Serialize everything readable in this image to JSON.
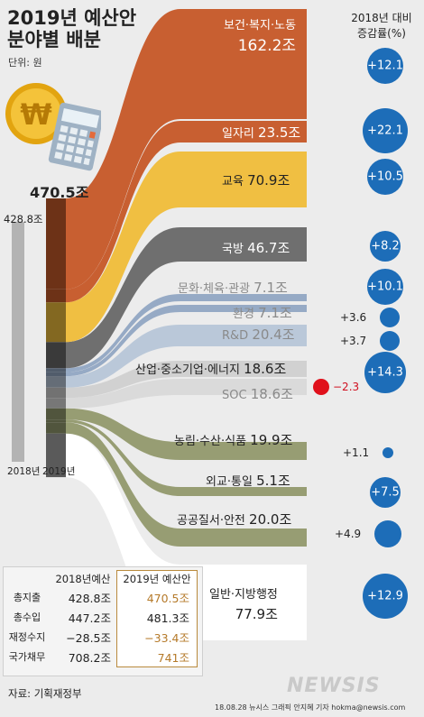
{
  "title_line1": "2019년 예산안",
  "title_line2": "분야별 배분",
  "unit": "단위: 원",
  "increase_title": "2018년 대비\n증감률(%)",
  "total_2019": "470.5조",
  "total_2018": "428.8조",
  "year_2018": "2018년",
  "year_2019": "2019년",
  "chart_data": {
    "type": "sankey",
    "unit": "조 원",
    "totals": {
      "2018": 428.8,
      "2019": 470.5
    },
    "categories": [
      {
        "name": "보건·복지·노동",
        "value_label": "162.2조",
        "value": 162.2,
        "change_pct": 12.1,
        "change_label": "+12.1",
        "color": "#c65a2a"
      },
      {
        "name": "일자리",
        "value_label": "23.5조",
        "value": 23.5,
        "change_pct": 22.1,
        "change_label": "+22.1",
        "color": "#c65a2a"
      },
      {
        "name": "교육",
        "value_label": "70.9조",
        "value": 70.9,
        "change_pct": 10.5,
        "change_label": "+10.5",
        "color": "#efbd3c"
      },
      {
        "name": "국방",
        "value_label": "46.7조",
        "value": 46.7,
        "change_pct": 8.2,
        "change_label": "+8.2",
        "color": "#6a6a6a"
      },
      {
        "name": "문화·체육·관광",
        "value_label": "7.1조",
        "value": 7.1,
        "change_pct": 10.1,
        "change_label": "+10.1",
        "color": "#93a7c3"
      },
      {
        "name": "환경",
        "value_label": "7.1조",
        "value": 7.1,
        "change_pct": 3.6,
        "change_label": "+3.6",
        "color": "#93a7c3"
      },
      {
        "name": "R&D",
        "value_label": "20.4조",
        "value": 20.4,
        "change_pct": 3.7,
        "change_label": "+3.7",
        "color": "#b8c6d8"
      },
      {
        "name": "산업·중소기업·에너지",
        "value_label": "18.6조",
        "value": 18.6,
        "change_pct": 14.3,
        "change_label": "+14.3",
        "color": "#cfcfcf"
      },
      {
        "name": "SOC",
        "value_label": "18.6조",
        "value": 18.6,
        "change_pct": -2.3,
        "change_label": "−2.3",
        "color": "#d9d9d9"
      },
      {
        "name": "농림·수산·식품",
        "value_label": "19.9조",
        "value": 19.9,
        "change_pct": 1.1,
        "change_label": "+1.1",
        "color": "#949a6e"
      },
      {
        "name": "외교·통일",
        "value_label": "5.1조",
        "value": 5.1,
        "change_pct": 7.5,
        "change_label": "+7.5",
        "color": "#949a6e"
      },
      {
        "name": "공공질서·안전",
        "value_label": "20.0조",
        "value": 20.0,
        "change_pct": 4.9,
        "change_label": "+4.9",
        "color": "#949a6e"
      },
      {
        "name": "일반·지방행정",
        "value_label": "77.9조",
        "value": 77.9,
        "change_pct": 12.9,
        "change_label": "+12.9",
        "color": "#ffffff"
      }
    ]
  },
  "table": {
    "header_2018": "2018년예산",
    "header_2019": "2019년 예산안",
    "rows": [
      {
        "label": "총지출",
        "v2018": "428.8조",
        "v2019": "470.5조"
      },
      {
        "label": "총수입",
        "v2018": "447.2조",
        "v2019": "481.3조"
      },
      {
        "label": "재정수지",
        "v2018": "−28.5조",
        "v2019": "−33.4조"
      },
      {
        "label": "국가채무",
        "v2018": "708.2조",
        "v2019": "741조"
      }
    ]
  },
  "source": "자료: 기획재정부",
  "credit": "18.08.28  뉴시스 그래픽 안지혜 기자  hokma@newsis.com",
  "watermark": "NEWSIS",
  "colors": {
    "circle": "#1d6db8",
    "negative": "#e0101b",
    "orange": "#c65a2a",
    "yellow": "#efbd3c"
  }
}
